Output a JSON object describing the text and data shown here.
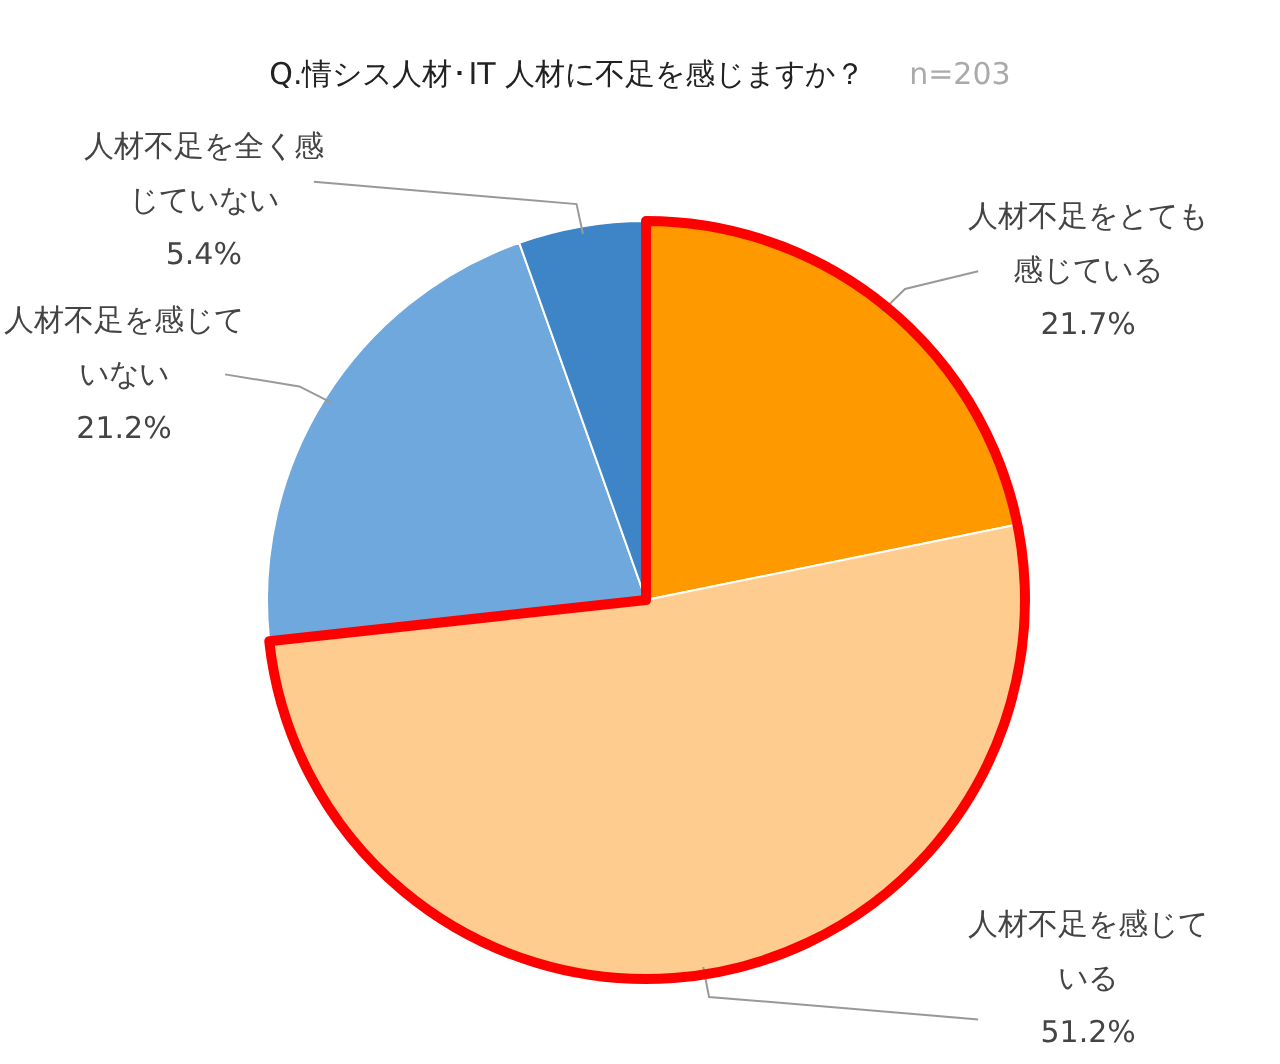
{
  "chart_data": {
    "type": "pie",
    "title": "Q.情シス人材･IT 人材に不足を感じますか？",
    "subtitle": "n=203",
    "categories": [
      "人材不足をとても感じている",
      "人材不足を感じている",
      "人材不足を感じていない",
      "人材不足を全く感じていない"
    ],
    "values": [
      21.7,
      51.2,
      21.2,
      5.4
    ],
    "value_labels": [
      "21.7%",
      "51.2%",
      "21.2%",
      "5.4%"
    ],
    "colors": [
      "#ff9900",
      "#ffcc8f",
      "#6fa8dc",
      "#3d85c6"
    ],
    "legend": false
  }
}
